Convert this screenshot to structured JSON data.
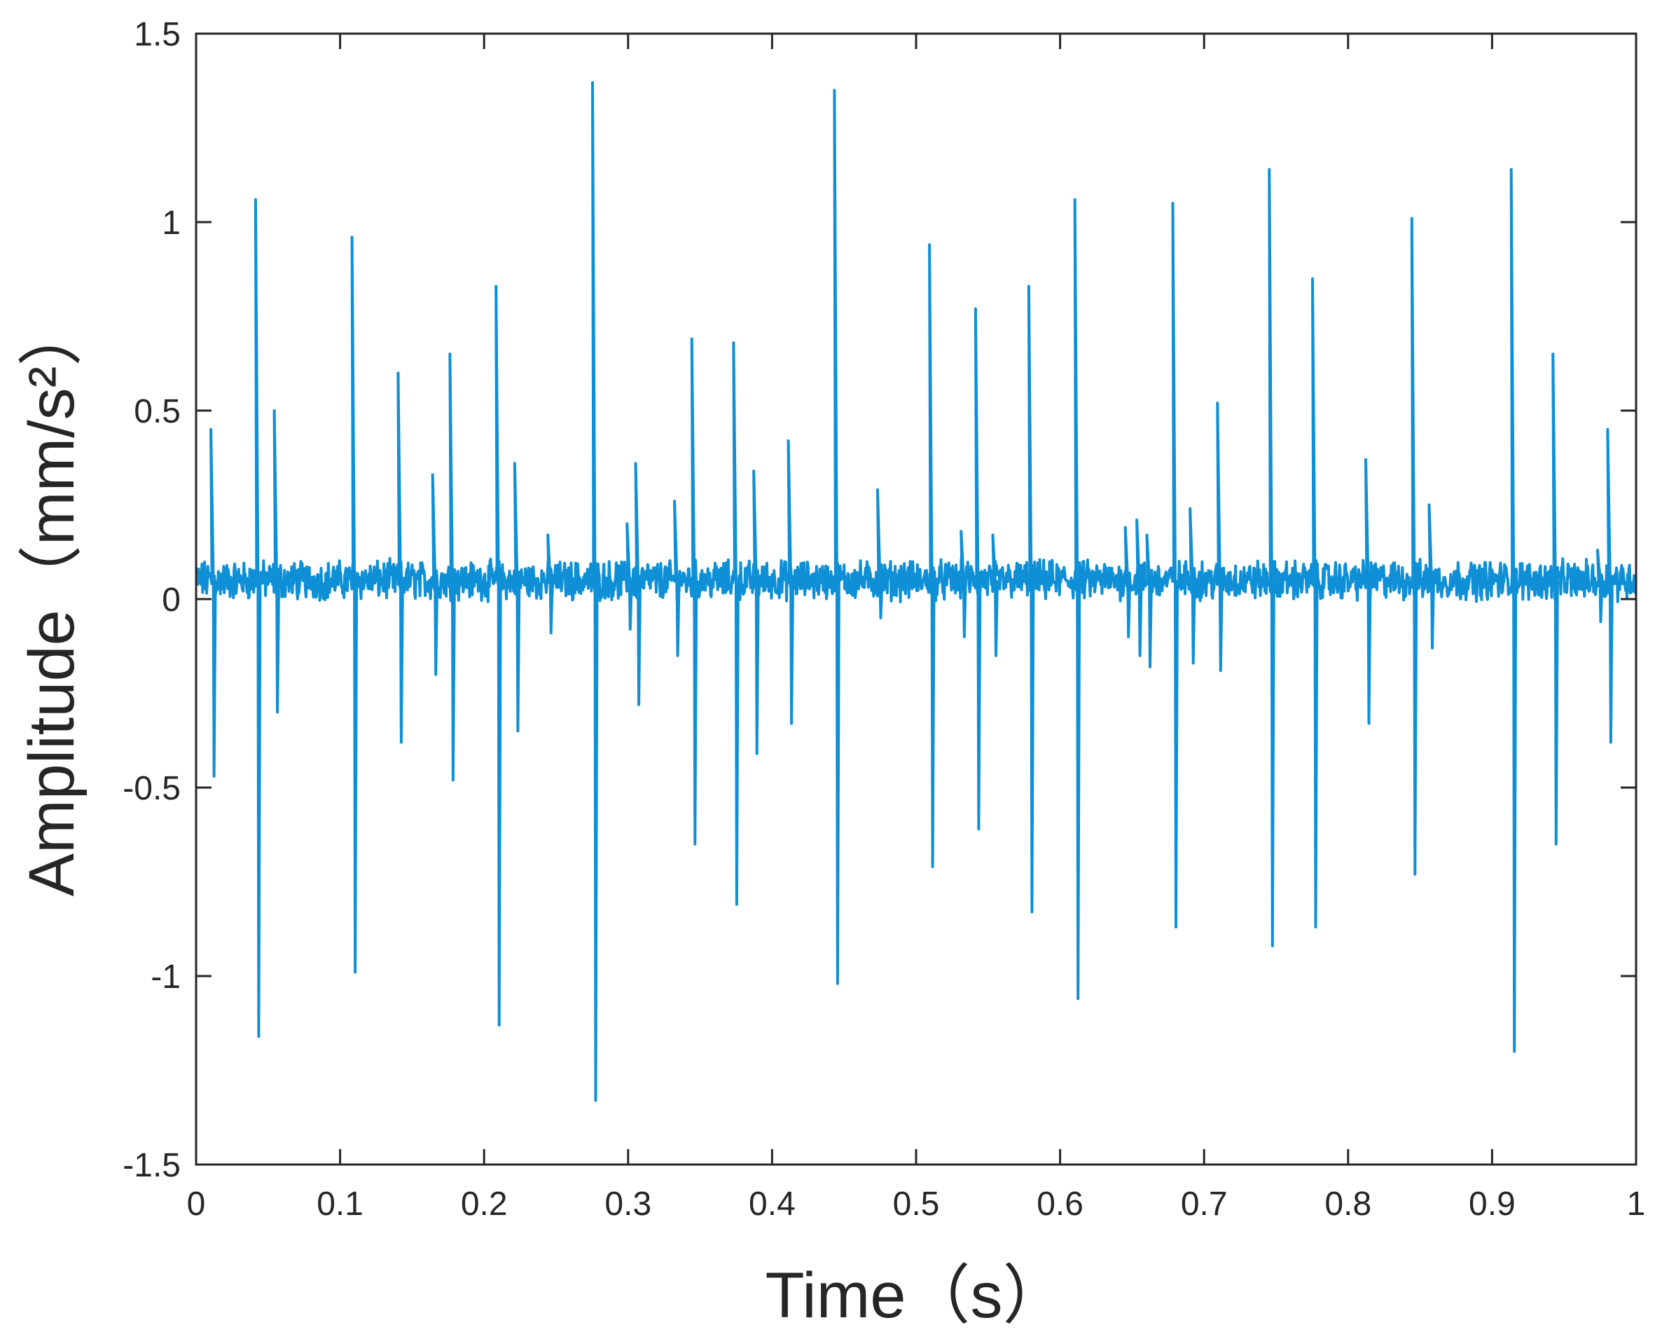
{
  "chart_data": {
    "type": "line",
    "title": "",
    "xlabel": "Time（s）",
    "ylabel": "Amplitude（mm/s²）",
    "xlim": [
      0,
      1
    ],
    "ylim": [
      -1.5,
      1.5
    ],
    "x_ticks": [
      "0",
      "0.1",
      "0.2",
      "0.3",
      "0.4",
      "0.5",
      "0.6",
      "0.7",
      "0.8",
      "0.9",
      "1"
    ],
    "y_ticks": [
      "-1.5",
      "-1",
      "-0.5",
      "0",
      "0.5",
      "1",
      "1.5"
    ],
    "grid": false,
    "legend": "none",
    "line_color": "#0e8fd6",
    "baseline": 0.05,
    "noise_amplitude": 0.04,
    "series": [
      {
        "impulses_x": [
          0.011,
          0.042,
          0.055,
          0.109,
          0.141,
          0.165,
          0.177,
          0.209,
          0.222,
          0.245,
          0.276,
          0.3,
          0.306,
          0.333,
          0.345,
          0.374,
          0.388,
          0.412,
          0.444,
          0.474,
          0.51,
          0.532,
          0.542,
          0.554,
          0.579,
          0.611,
          0.646,
          0.654,
          0.661,
          0.679,
          0.691,
          0.71,
          0.746,
          0.776,
          0.813,
          0.845,
          0.857,
          0.914,
          0.943,
          0.974,
          0.981
        ],
        "impulses_max": [
          0.45,
          1.06,
          0.5,
          0.96,
          0.6,
          0.33,
          0.65,
          0.83,
          0.36,
          0.17,
          1.37,
          0.2,
          0.36,
          0.26,
          0.69,
          0.68,
          0.34,
          0.42,
          1.35,
          0.29,
          0.94,
          0.18,
          0.77,
          0.17,
          0.83,
          1.06,
          0.19,
          0.21,
          0.17,
          1.05,
          0.24,
          0.52,
          1.14,
          0.85,
          0.37,
          1.01,
          0.25,
          1.14,
          0.65,
          0.13,
          0.45
        ],
        "impulses_min": [
          -0.47,
          -1.16,
          -0.3,
          -0.99,
          -0.38,
          -0.2,
          -0.48,
          -1.13,
          -0.35,
          -0.09,
          -1.33,
          -0.08,
          -0.28,
          -0.15,
          -0.65,
          -0.81,
          -0.41,
          -0.33,
          -1.02,
          -0.05,
          -0.71,
          -0.1,
          -0.61,
          -0.15,
          -0.83,
          -1.06,
          -0.1,
          -0.15,
          -0.18,
          -0.87,
          -0.17,
          -0.19,
          -0.92,
          -0.87,
          -0.33,
          -0.73,
          -0.13,
          -1.2,
          -0.65,
          -0.06,
          -0.38
        ]
      }
    ]
  }
}
